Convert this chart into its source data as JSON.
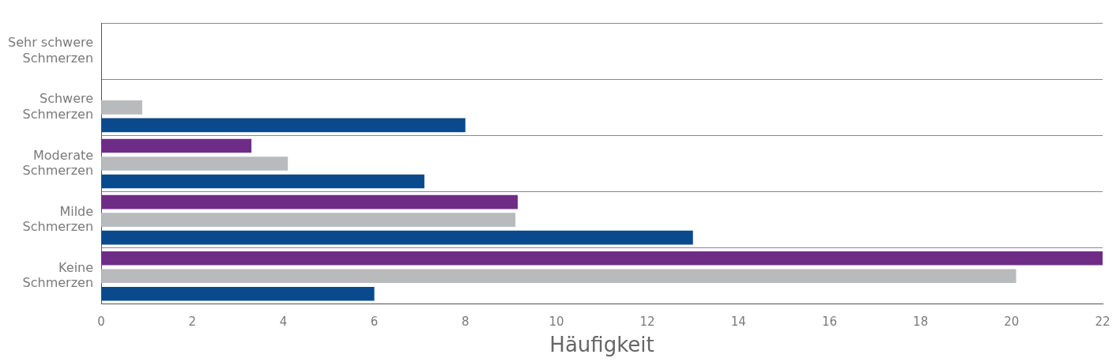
{
  "chart_data": {
    "type": "bar",
    "orientation": "horizontal",
    "xlabel": "Häufigkeit",
    "categories": [
      "Sehr schwere Schmerzen",
      "Schwere Schmerzen",
      "Moderate Schmerzen",
      "Milde Schmerzen",
      "Keine Schmerzen"
    ],
    "series": [
      {
        "color": "#6f2c86",
        "values": [
          null,
          null,
          3.3,
          9.15,
          22
        ]
      },
      {
        "color": "#b9babc",
        "values": [
          null,
          0.9,
          4.1,
          9.1,
          20.1
        ]
      },
      {
        "color": "#0a4a8c",
        "values": [
          null,
          8,
          7.1,
          13,
          6
        ]
      }
    ],
    "xlim": [
      0,
      22
    ],
    "xticks": [
      0,
      2,
      4,
      6,
      8,
      10,
      12,
      14,
      16,
      18,
      20,
      22
    ],
    "grid": "y",
    "legend": false
  }
}
